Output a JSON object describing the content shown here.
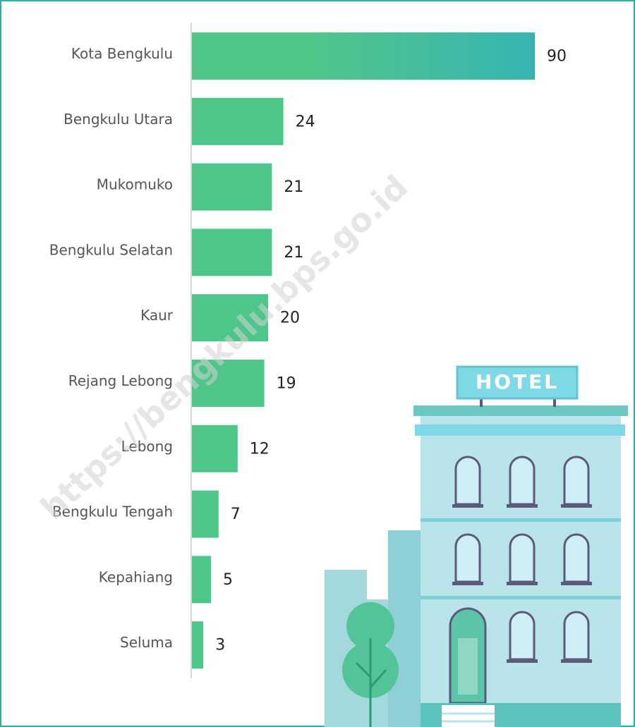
{
  "chart_data": {
    "type": "hbar",
    "categories": [
      "Kota Bengkulu",
      "Bengkulu Utara",
      "Mukomuko",
      "Bengkulu Selatan",
      "Kaur",
      "Rejang Lebong",
      "Lebong",
      "Bengkulu Tengah",
      "Kepahiang",
      "Seluma"
    ],
    "values": [
      90,
      24,
      21,
      21,
      20,
      19,
      12,
      7,
      5,
      3
    ],
    "color": "#4fc689",
    "gradient_end_color": "#37b4b2",
    "xlim": [
      0,
      90
    ],
    "watermark": "https://bengkulu.bps.go.id",
    "illustration_sign": "HOTEL"
  }
}
